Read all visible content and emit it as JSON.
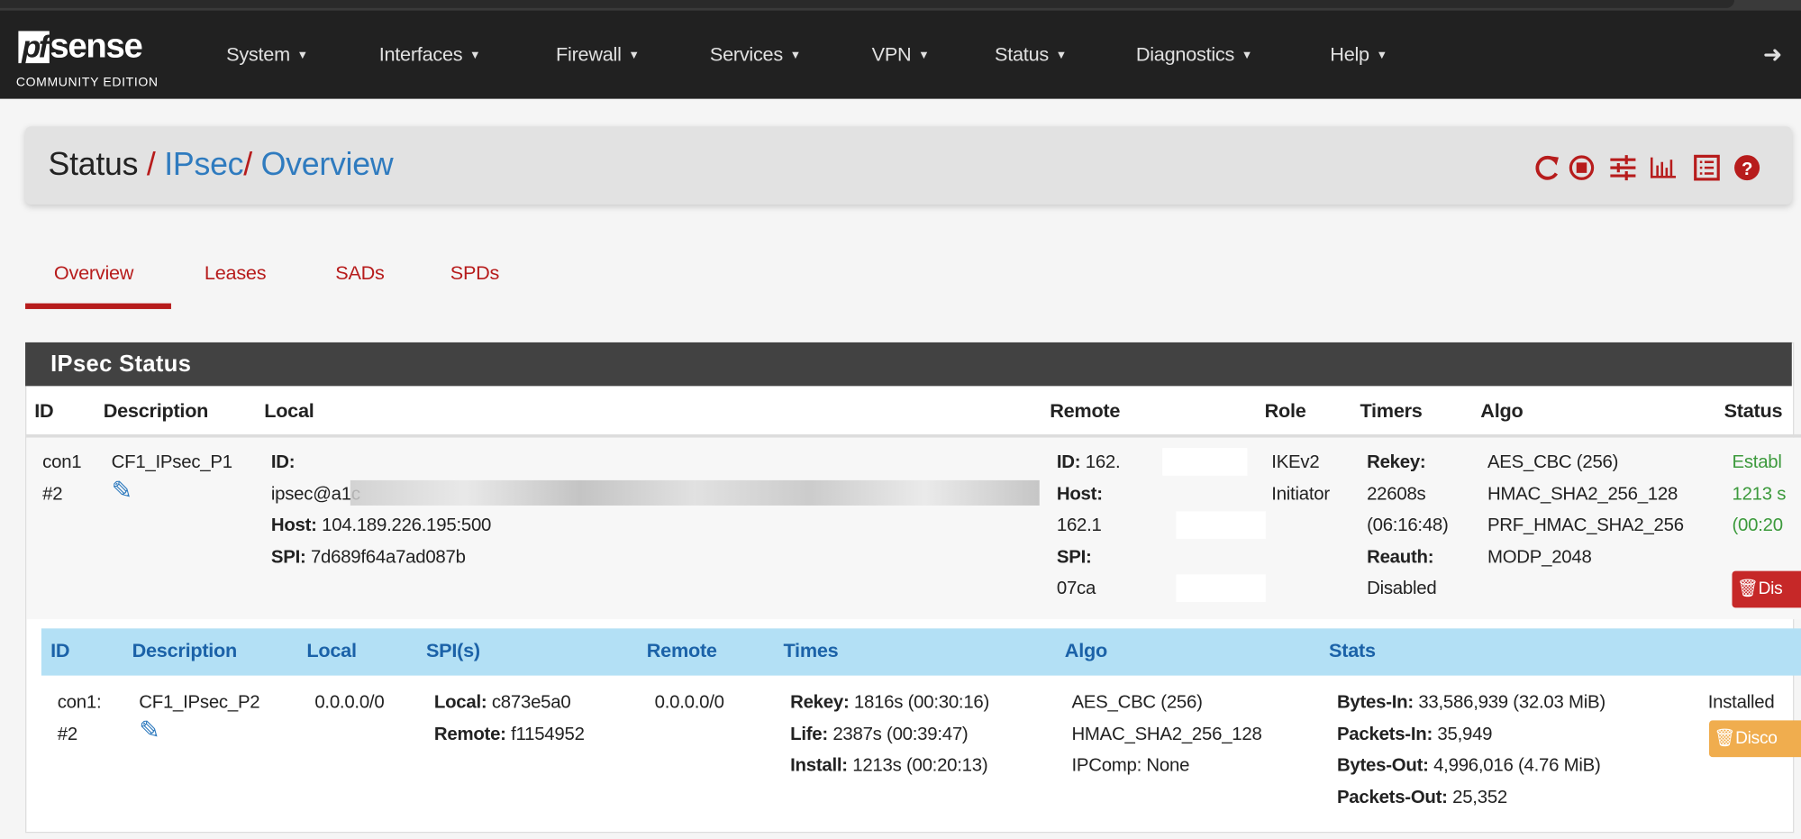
{
  "brand": {
    "logo_pf": "pf",
    "logo_sense": "sense",
    "edition": "COMMUNITY EDITION"
  },
  "nav": [
    "System",
    "Interfaces",
    "Firewall",
    "Services",
    "VPN",
    "Status",
    "Diagnostics",
    "Help"
  ],
  "breadcrumb": {
    "part1": "Status",
    "part2": "IPsec",
    "part3": "Overview",
    "separator": "/"
  },
  "toolbar_icons": [
    "refresh-icon",
    "stop-icon",
    "settings-sliders-icon",
    "chart-icon",
    "log-list-icon",
    "help-icon"
  ],
  "tabs": [
    {
      "label": "Overview",
      "active": true
    },
    {
      "label": "Leases"
    },
    {
      "label": "SADs"
    },
    {
      "label": "SPDs"
    }
  ],
  "panel": {
    "title": "IPsec Status"
  },
  "p1_headers": [
    "ID",
    "Description",
    "Local",
    "Remote",
    "Role",
    "Timers",
    "Algo",
    "Status"
  ],
  "p1": {
    "id_line1": "con1",
    "id_line2": "#2",
    "description": "CF1_IPsec_P1",
    "local_id_label": "ID:",
    "local_id_value": "ipsec@a1c",
    "local_host_label": "Host:",
    "local_host": "104.189.226.195:500",
    "local_spi_label": "SPI:",
    "local_spi": "7d689f64a7ad087b",
    "remote_id_label": "ID:",
    "remote_id": "162.",
    "remote_host_label": "Host:",
    "remote_host": "162.1",
    "remote_spi_label": "SPI:",
    "remote_spi": "07ca",
    "role_line1": "IKEv2",
    "role_line2": "Initiator",
    "rekey_label": "Rekey:",
    "rekey": "22608s",
    "rekey_time": "(06:16:48)",
    "reauth_label": "Reauth:",
    "reauth": "Disabled",
    "algo": [
      "AES_CBC (256)",
      "HMAC_SHA2_256_128",
      "PRF_HMAC_SHA2_256",
      "MODP_2048"
    ],
    "status_line1": "Establ",
    "status_line2": "1213 s",
    "status_line3": "(00:20",
    "disconnect_label": "Dis"
  },
  "p2_headers": [
    "ID",
    "Description",
    "Local",
    "SPI(s)",
    "Remote",
    "Times",
    "Algo",
    "Stats"
  ],
  "p2": {
    "id_line1": "con1:",
    "id_line2": "#2",
    "description": "CF1_IPsec_P2",
    "local": "0.0.0.0/0",
    "remote": "0.0.0.0/0",
    "spi_local_label": "Local:",
    "spi_local": "c873e5a0",
    "spi_remote_label": "Remote:",
    "spi_remote": "f1154952",
    "rekey_label": "Rekey:",
    "rekey": "1816s (00:30:16)",
    "life_label": "Life:",
    "life": "2387s (00:39:47)",
    "install_label": "Install:",
    "install": "1213s (00:20:13)",
    "algo": [
      "AES_CBC (256)",
      "HMAC_SHA2_256_128",
      "IPComp: None"
    ],
    "bytes_in_label": "Bytes-In:",
    "bytes_in": "33,586,939 (32.03 MiB)",
    "packets_in_label": "Packets-In:",
    "packets_in": "35,949",
    "bytes_out_label": "Bytes-Out:",
    "bytes_out": "4,996,016 (4.76 MiB)",
    "packets_out_label": "Packets-Out:",
    "packets_out": "25,352",
    "status": "Installed",
    "disconnect_label": "Disco"
  },
  "colors": {
    "navbar": "#212121",
    "accent_red": "#b71c1c",
    "link_blue": "#2f7bbf",
    "child_header": "#b3e0f5",
    "established_green": "#3c9a3c",
    "disconnect_p2": "#f0ad4e"
  }
}
